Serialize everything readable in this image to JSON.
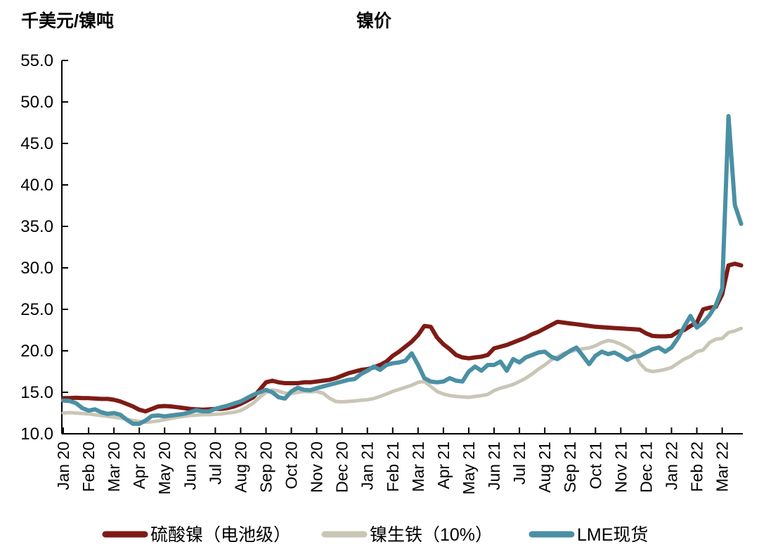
{
  "page": {
    "background": "#ffffff"
  },
  "chart_data": {
    "type": "line",
    "title": "镍价",
    "y_axis_unit_label": "千美元/镍吨",
    "grid": "off",
    "legend_position": "bottom",
    "points_per_month": 4,
    "y_axis": {
      "min": 10,
      "max": 55,
      "step": 5,
      "tick_labels": [
        "10.0",
        "15.0",
        "20.0",
        "25.0",
        "30.0",
        "35.0",
        "40.0",
        "45.0",
        "50.0",
        "55.0"
      ]
    },
    "x_axis": {
      "tick_labels": [
        "Jan 20",
        "Feb 20",
        "Mar 20",
        "Apr 20",
        "May 20",
        "Jun 20",
        "Jul 20",
        "Aug 20",
        "Sep 20",
        "Oct 20",
        "Nov 20",
        "Dec 20",
        "Jan 21",
        "Feb 21",
        "Mar 21",
        "Apr 21",
        "May 21",
        "Jun 21",
        "Jul 21",
        "Aug 21",
        "Sep 21",
        "Oct 21",
        "Nov 21",
        "Dec 21",
        "Jan 22",
        "Feb 22",
        "Mar 22"
      ]
    },
    "series": [
      {
        "name": "硫酸镍（电池级）",
        "color": "#7E1B16",
        "line_width": 6,
        "values": [
          14.3,
          14.3,
          14.35,
          14.3,
          14.3,
          14.25,
          14.2,
          14.2,
          14.1,
          13.9,
          13.6,
          13.3,
          12.9,
          12.7,
          13.0,
          13.3,
          13.35,
          13.3,
          13.2,
          13.1,
          13.0,
          12.95,
          12.9,
          12.95,
          13.0,
          13.0,
          13.1,
          13.3,
          13.6,
          14.0,
          14.4,
          15.3,
          16.2,
          16.4,
          16.2,
          16.1,
          16.1,
          16.1,
          16.2,
          16.2,
          16.3,
          16.4,
          16.5,
          16.7,
          17.0,
          17.3,
          17.5,
          17.7,
          17.8,
          18.0,
          18.3,
          18.7,
          19.4,
          19.9,
          20.5,
          21.1,
          21.9,
          23.0,
          22.9,
          21.6,
          20.8,
          20.2,
          19.5,
          19.2,
          19.1,
          19.2,
          19.3,
          19.5,
          20.3,
          20.5,
          20.7,
          21.0,
          21.3,
          21.6,
          22.0,
          22.3,
          22.7,
          23.1,
          23.5,
          23.4,
          23.3,
          23.2,
          23.1,
          23.0,
          22.9,
          22.85,
          22.8,
          22.75,
          22.7,
          22.65,
          22.6,
          22.55,
          22.1,
          21.8,
          21.75,
          21.75,
          21.8,
          22.3,
          22.5,
          23.0,
          23.4,
          25.0,
          25.2,
          25.3,
          26.8,
          30.3,
          30.5,
          30.3
        ]
      },
      {
        "name": "镍生铁（10%）",
        "color": "#C9C6B6",
        "line_width": 5,
        "values": [
          12.5,
          12.55,
          12.5,
          12.45,
          12.4,
          12.3,
          12.2,
          12.1,
          12.0,
          11.9,
          11.75,
          11.6,
          11.5,
          11.4,
          11.45,
          11.55,
          11.7,
          11.85,
          12.0,
          12.1,
          12.2,
          12.25,
          12.3,
          12.3,
          12.35,
          12.4,
          12.5,
          12.6,
          12.8,
          13.2,
          13.7,
          14.4,
          15.0,
          15.3,
          15.15,
          14.9,
          14.85,
          15.0,
          15.1,
          15.05,
          15.1,
          14.9,
          14.3,
          13.9,
          13.85,
          13.9,
          13.95,
          14.05,
          14.1,
          14.25,
          14.5,
          14.8,
          15.1,
          15.35,
          15.6,
          15.85,
          16.2,
          16.3,
          15.7,
          15.1,
          14.8,
          14.6,
          14.5,
          14.45,
          14.4,
          14.5,
          14.6,
          14.75,
          15.2,
          15.5,
          15.7,
          15.95,
          16.3,
          16.7,
          17.2,
          17.8,
          18.3,
          18.9,
          19.3,
          19.7,
          19.9,
          20.1,
          20.25,
          20.35,
          20.6,
          21.0,
          21.25,
          21.1,
          20.8,
          20.4,
          19.9,
          18.5,
          17.7,
          17.5,
          17.6,
          17.75,
          18.0,
          18.5,
          19.0,
          19.35,
          19.9,
          20.1,
          21.0,
          21.4,
          21.5,
          22.2,
          22.4,
          22.7
        ]
      },
      {
        "name": "LME现货",
        "color": "#4A90A4",
        "line_width": 6,
        "values": [
          14.0,
          13.95,
          13.7,
          13.1,
          12.8,
          12.95,
          12.6,
          12.4,
          12.5,
          12.3,
          11.7,
          11.2,
          11.2,
          11.6,
          12.15,
          12.2,
          12.1,
          12.2,
          12.3,
          12.4,
          12.6,
          12.85,
          12.7,
          12.7,
          13.0,
          13.2,
          13.4,
          13.65,
          13.9,
          14.3,
          14.7,
          15.0,
          15.3,
          15.0,
          14.4,
          14.25,
          15.1,
          15.55,
          15.3,
          15.25,
          15.5,
          15.7,
          15.9,
          16.1,
          16.3,
          16.5,
          16.6,
          17.2,
          17.6,
          18.1,
          17.7,
          18.3,
          18.5,
          18.6,
          18.8,
          19.7,
          18.3,
          16.7,
          16.3,
          16.2,
          16.3,
          16.7,
          16.4,
          16.3,
          17.5,
          18.1,
          17.6,
          18.3,
          18.3,
          18.7,
          17.6,
          19.0,
          18.6,
          19.2,
          19.5,
          19.8,
          19.9,
          19.3,
          19.0,
          19.5,
          20.0,
          20.4,
          19.4,
          18.4,
          19.4,
          19.9,
          19.6,
          19.8,
          19.4,
          18.9,
          19.3,
          19.4,
          19.8,
          20.2,
          20.4,
          19.9,
          20.4,
          21.5,
          22.9,
          24.2,
          22.8,
          23.4,
          24.3,
          25.5,
          27.5,
          48.3,
          37.6,
          35.3
        ]
      }
    ]
  }
}
